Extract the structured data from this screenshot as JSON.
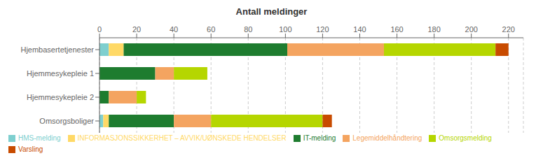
{
  "chart_data": {
    "type": "bar",
    "title": "Antall meldinger",
    "orientation": "horizontal",
    "stacked": true,
    "categories": [
      "Omsorgsboliger",
      "Hjemmesykepleie 2",
      "Hjemmesykepleie 1",
      "Hjembasertetjenester"
    ],
    "series": [
      {
        "name": "HMS-melding",
        "color": "#7ecfcf",
        "values": [
          2,
          0,
          0,
          5
        ]
      },
      {
        "name": "INFORMASJONSSIKKERHET – AVVIK/UØNSKEDE HENDELSER",
        "color": "#ffd966",
        "values": [
          3,
          0,
          0,
          8
        ]
      },
      {
        "name": "IT-melding",
        "color": "#1e7c2f",
        "values": [
          35,
          5,
          30,
          88
        ]
      },
      {
        "name": "Legemiddelhåndtering",
        "color": "#f4a460",
        "values": [
          20,
          15,
          10,
          52
        ]
      },
      {
        "name": "Omsorgsmelding",
        "color": "#b5d600",
        "values": [
          60,
          5,
          18,
          60
        ]
      },
      {
        "name": "Varsling",
        "color": "#c84b00",
        "values": [
          5,
          0,
          0,
          7
        ]
      }
    ],
    "xlim": [
      0,
      228
    ],
    "xticks": [
      0,
      20,
      40,
      60,
      80,
      100,
      120,
      140,
      160,
      180,
      200,
      220
    ],
    "grid": true,
    "legend": "bottom"
  }
}
